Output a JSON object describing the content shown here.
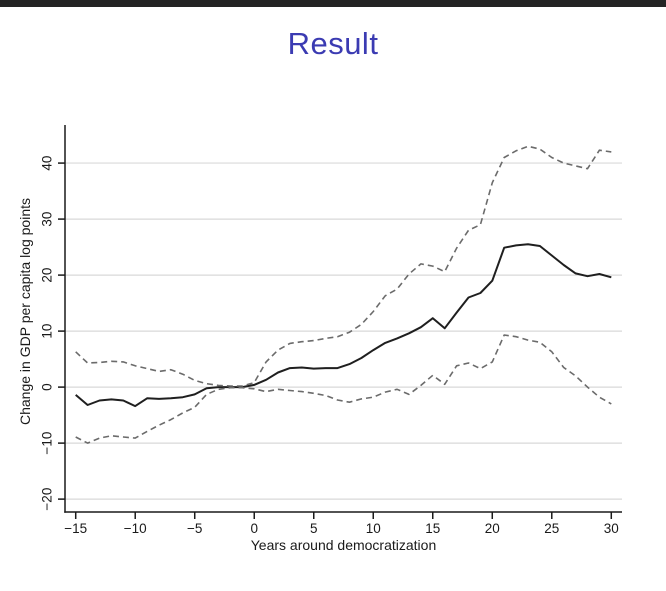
{
  "slide": {
    "title": "Result"
  },
  "chart_data": {
    "type": "line",
    "title": "",
    "xlabel": "Years around democratization",
    "ylabel": "Change in GDP per capita log points",
    "x": [
      -15,
      -14,
      -13,
      -12,
      -11,
      -10,
      -9,
      -8,
      -7,
      -6,
      -5,
      -4,
      -3,
      -2,
      -1,
      0,
      1,
      2,
      3,
      4,
      5,
      6,
      7,
      8,
      9,
      10,
      11,
      12,
      13,
      14,
      15,
      16,
      17,
      18,
      19,
      20,
      21,
      22,
      23,
      24,
      25,
      26,
      27,
      28,
      29,
      30
    ],
    "series": [
      {
        "name": "Point estimate",
        "style": "solid",
        "color": "#1f1f1f",
        "width": 2,
        "values": [
          -1.4,
          -3.2,
          -2.4,
          -2.2,
          -2.4,
          -3.4,
          -2.0,
          -2.1,
          -2.0,
          -1.8,
          -1.3,
          -0.2,
          0,
          0,
          0,
          0.4,
          1.3,
          2.6,
          3.4,
          3.5,
          3.3,
          3.4,
          3.4,
          4.1,
          5.2,
          6.6,
          7.9,
          8.7,
          9.6,
          10.7,
          12.3,
          10.5,
          13.3,
          16.0,
          16.8,
          19.0,
          24.9,
          25.3,
          25.5,
          25.2,
          23.5,
          21.8,
          20.3,
          19.8,
          20.2,
          19.6
        ]
      },
      {
        "name": "Confidence band upper",
        "style": "dashed",
        "color": "#6b6b6b",
        "width": 1.6,
        "values": [
          6.3,
          4.3,
          4.4,
          4.6,
          4.5,
          3.8,
          3.3,
          2.8,
          3.1,
          2.3,
          1.2,
          0.6,
          0.3,
          0.2,
          0.2,
          0.8,
          4.5,
          6.6,
          7.8,
          8.1,
          8.3,
          8.7,
          9.0,
          9.8,
          11.2,
          13.5,
          16.3,
          17.5,
          20.2,
          22.0,
          21.6,
          20.6,
          24.8,
          28.0,
          29.0,
          36.5,
          41.0,
          42.2,
          43.0,
          42.5,
          41.0,
          40.0,
          39.5,
          39.0,
          42.3,
          42.0
        ]
      },
      {
        "name": "Confidence band lower",
        "style": "dashed",
        "color": "#6b6b6b",
        "width": 1.6,
        "values": [
          -8.9,
          -10.0,
          -9.1,
          -8.7,
          -8.9,
          -9.1,
          -7.9,
          -6.8,
          -5.8,
          -4.6,
          -3.6,
          -1.3,
          -0.4,
          -0.1,
          -0.1,
          -0.3,
          -0.8,
          -0.4,
          -0.6,
          -0.8,
          -1.1,
          -1.5,
          -2.3,
          -2.7,
          -2.1,
          -1.8,
          -0.9,
          -0.4,
          -1.3,
          0.3,
          2.1,
          0.5,
          3.8,
          4.3,
          3.3,
          4.5,
          9.3,
          9.0,
          8.4,
          8.0,
          6.3,
          3.5,
          2.0,
          0.0,
          -1.8,
          -3.0
        ]
      }
    ],
    "xticks": [
      -15,
      -10,
      -5,
      0,
      5,
      10,
      15,
      20,
      25,
      30
    ],
    "yticks": [
      -20,
      -10,
      0,
      10,
      20,
      30,
      40
    ],
    "xlim": [
      -15.9,
      30.9
    ],
    "ylim": [
      -22.3,
      46.8
    ],
    "grid": "horizontal",
    "grid_color": "#d9d9d9",
    "axis_color": "#1a1a1a",
    "tick_label_size": 13.5,
    "axis_label_size": 14,
    "legend": "none"
  }
}
